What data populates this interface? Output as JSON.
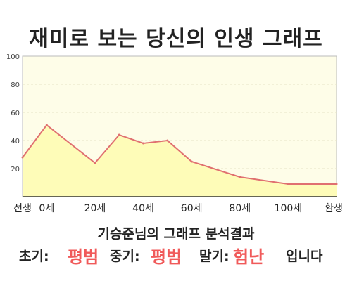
{
  "title": "재미로 보는 당신의 인생 그래프",
  "caption": "기승준님의 그래프 분석결과",
  "summary": {
    "early_label": "초기:",
    "early_value": "평범",
    "mid_label": "중기:",
    "mid_value": "평범",
    "late_label": "말기:",
    "late_value": "험난",
    "ending": "입니다"
  },
  "colors": {
    "plot_bg": "#fefde8",
    "line": "#e07070",
    "fill": "#fefcb8",
    "value_highlight": "#f05a5a"
  },
  "chart_data": {
    "type": "area",
    "x_categories": [
      "전생",
      "0세",
      "20세",
      "40세",
      "60세",
      "80세",
      "100세",
      "환생"
    ],
    "y_ticks": [
      20,
      40,
      60,
      80,
      100
    ],
    "ylim": [
      0,
      100
    ],
    "grid": true,
    "series": [
      {
        "points": [
          {
            "x": "전생",
            "y": 28
          },
          {
            "x": "0세",
            "y": 51
          },
          {
            "x": "20세",
            "y": 24
          },
          {
            "x": "30세",
            "y": 44
          },
          {
            "x": "40세",
            "y": 38
          },
          {
            "x": "50세",
            "y": 40
          },
          {
            "x": "60세",
            "y": 25
          },
          {
            "x": "80세",
            "y": 14
          },
          {
            "x": "100세",
            "y": 9
          },
          {
            "x": "환생",
            "y": 9
          }
        ]
      }
    ]
  }
}
